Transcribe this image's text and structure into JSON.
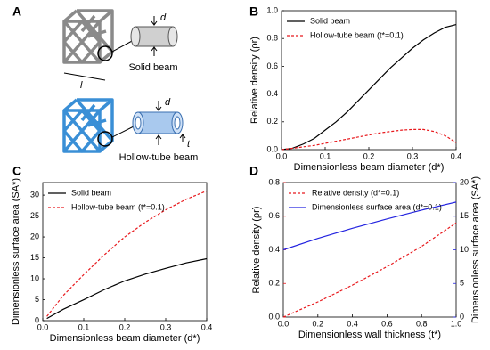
{
  "panel_a": {
    "panel": "A",
    "solid_label": "Solid beam",
    "hollow_label": "Hollow-tube beam",
    "d_solid": "d",
    "d_hollow": "d",
    "l": "l",
    "t": "t"
  },
  "chart_data": [
    {
      "type": "line",
      "panel": "B",
      "xlabel": "Dimensionless beam diameter (d*)",
      "ylabel": "Relative density (ρr)",
      "x": [
        0,
        0.025,
        0.05,
        0.075,
        0.1,
        0.125,
        0.15,
        0.175,
        0.2,
        0.225,
        0.25,
        0.275,
        0.3,
        0.325,
        0.35,
        0.375,
        0.4
      ],
      "series": [
        {
          "name": "Solid beam",
          "color": "#000000",
          "dashed": false,
          "values": [
            0,
            0.01,
            0.04,
            0.08,
            0.14,
            0.2,
            0.27,
            0.35,
            0.43,
            0.51,
            0.59,
            0.66,
            0.73,
            0.79,
            0.84,
            0.88,
            0.9
          ]
        },
        {
          "name": "Hollow-tube beam (t*=0.1)",
          "color": "#e8191d",
          "dashed": true,
          "values": [
            0,
            0.01,
            0.02,
            0.03,
            0.045,
            0.06,
            0.075,
            0.09,
            0.105,
            0.12,
            0.13,
            0.14,
            0.145,
            0.145,
            0.13,
            0.1,
            0.05
          ]
        }
      ],
      "xlim": [
        0,
        0.4
      ],
      "xticks": [
        {
          "value": 0,
          "label": "0.0"
        },
        0.1,
        0.2,
        0.3,
        0.4
      ],
      "ylim": [
        0,
        1
      ],
      "yticks": [
        {
          "value": 0,
          "label": "0.0"
        },
        0.2,
        0.4,
        0.6,
        0.8,
        {
          "value": 1,
          "label": "1.0"
        }
      ],
      "legend": "upper left"
    },
    {
      "type": "line",
      "panel": "C",
      "xlabel": "Dimensionless beam diameter (d*)",
      "ylabel": "Dimensionless surface area (SA*)",
      "x": [
        0.01,
        0.05,
        0.1,
        0.15,
        0.2,
        0.25,
        0.3,
        0.35,
        0.4
      ],
      "series": [
        {
          "name": "Solid beam",
          "color": "#000000",
          "dashed": false,
          "values": [
            0.5,
            2.7,
            5,
            7.4,
            9.5,
            11.1,
            12.5,
            13.8,
            14.8
          ]
        },
        {
          "name": "Hollow-tube beam (t*=0.1)",
          "color": "#e8191d",
          "dashed": true,
          "values": [
            1,
            6,
            11,
            15.7,
            20,
            23.5,
            26.5,
            29,
            31
          ]
        }
      ],
      "xlim": [
        0,
        0.4
      ],
      "xticks": [
        {
          "value": 0,
          "label": "0.0"
        },
        0.1,
        0.2,
        0.3,
        0.4
      ],
      "ylim": [
        0,
        33
      ],
      "yticks": [
        0,
        5,
        10,
        15,
        20,
        25,
        30
      ],
      "legend": "upper left"
    },
    {
      "type": "line",
      "panel": "D",
      "xlabel": "Dimensionless wall thickness (t*)",
      "ylabel": "Relative density (ρr)",
      "y2label": "Dimensionless surface area (SA*)",
      "x": [
        0,
        0.2,
        0.4,
        0.6,
        0.8,
        1
      ],
      "series": [
        {
          "name": "Relative density (d*=0.1)",
          "color": "#e8191d",
          "dashed": true,
          "values": [
            0,
            0.09,
            0.19,
            0.3,
            0.42,
            0.56
          ]
        },
        {
          "name": "Dimensionless surface area (d*=0.1)",
          "color": "#2424e0",
          "dashed": false,
          "axis": "y2",
          "values": [
            10,
            11.7,
            13.2,
            14.6,
            15.9,
            17.1
          ]
        }
      ],
      "xlim": [
        0,
        1
      ],
      "xticks": [
        {
          "value": 0,
          "label": "0.0"
        },
        0.2,
        0.4,
        0.6,
        0.8,
        {
          "value": 1,
          "label": "1.0"
        }
      ],
      "ylim": [
        0,
        0.8
      ],
      "yticks": [
        {
          "value": 0,
          "label": "0.0"
        },
        0.2,
        0.4,
        0.6,
        0.8
      ],
      "y2lim": [
        0,
        20
      ],
      "y2ticks": [
        0,
        5,
        10,
        15,
        20
      ],
      "legend": "upper left"
    }
  ]
}
